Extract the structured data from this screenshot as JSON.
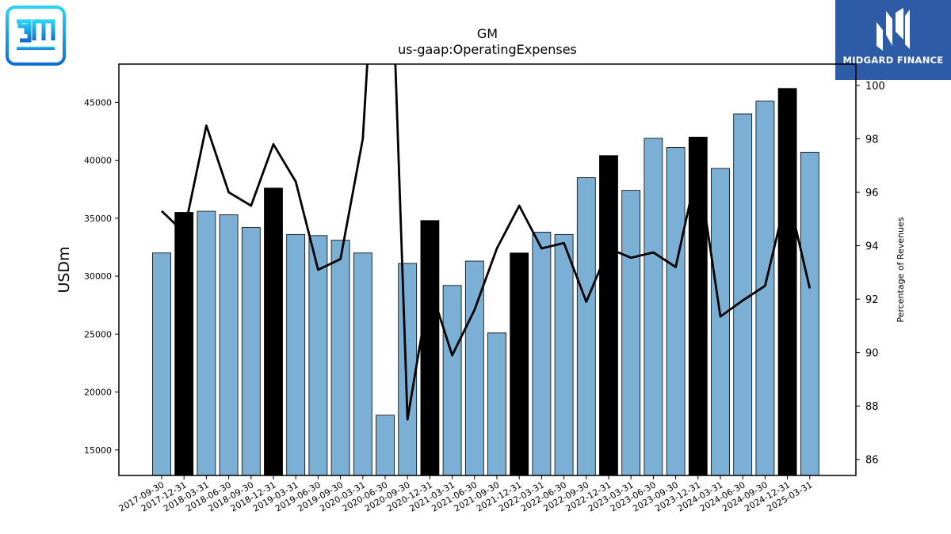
{
  "logos": {
    "company_logo": "gm",
    "brand_text": "MIDGARD FINANCE"
  },
  "chart_data": {
    "type": "bar",
    "title": "GM",
    "subtitle": "us-gaap:OperatingExpenses",
    "ylabel": "USDm",
    "y2label": "Percentage of Revenues",
    "categories": [
      "2017-09-30",
      "2017-12-31",
      "2018-03-31",
      "2018-06-30",
      "2018-09-30",
      "2018-12-31",
      "2019-03-31",
      "2019-06-30",
      "2019-09-30",
      "2020-03-31",
      "2020-06-30",
      "2020-09-30",
      "2020-12-31",
      "2021-03-31",
      "2021-06-30",
      "2021-09-30",
      "2021-12-31",
      "2022-03-31",
      "2022-06-30",
      "2022-09-30",
      "2022-12-31",
      "2023-03-31",
      "2023-06-30",
      "2023-09-30",
      "2023-12-31",
      "2024-03-31",
      "2024-06-30",
      "2024-09-30",
      "2024-12-31",
      "2025-03-31"
    ],
    "series": [
      {
        "kind": "bar",
        "axis": "left",
        "values": [
          32000,
          35500,
          35600,
          35300,
          34200,
          37600,
          33600,
          33500,
          33100,
          32000,
          18000,
          31100,
          34800,
          29200,
          31300,
          25100,
          32000,
          33800,
          33600,
          38500,
          40400,
          37400,
          41900,
          41100,
          42000,
          39300,
          44000,
          45100,
          46200,
          40700
        ]
      },
      {
        "kind": "line",
        "axis": "right",
        "values": [
          95.3,
          94.5,
          98.5,
          96.0,
          95.5,
          97.8,
          96.4,
          93.1,
          93.5,
          98.0,
          112.0,
          87.5,
          92.5,
          89.9,
          91.6,
          93.9,
          95.5,
          93.9,
          94.1,
          91.9,
          93.9,
          93.55,
          93.75,
          93.2,
          97.0,
          91.35,
          91.95,
          92.5,
          96.0,
          92.4
        ]
      }
    ],
    "annual_flags": [
      false,
      true,
      false,
      false,
      false,
      true,
      false,
      false,
      false,
      false,
      false,
      false,
      true,
      false,
      false,
      false,
      true,
      false,
      false,
      false,
      true,
      false,
      false,
      false,
      true,
      false,
      false,
      false,
      true,
      false
    ],
    "bar_color": "#7bafd4",
    "annual_bar_color": "#000000",
    "line_color": "#000000",
    "ylim": [
      12800,
      48300
    ],
    "y2lim": [
      85.4,
      100.8
    ],
    "yticks": [
      15000,
      20000,
      25000,
      30000,
      35000,
      40000,
      45000
    ],
    "y2ticks": [
      86,
      88,
      90,
      92,
      94,
      96,
      98,
      100
    ],
    "grid": false,
    "legend": "none"
  }
}
